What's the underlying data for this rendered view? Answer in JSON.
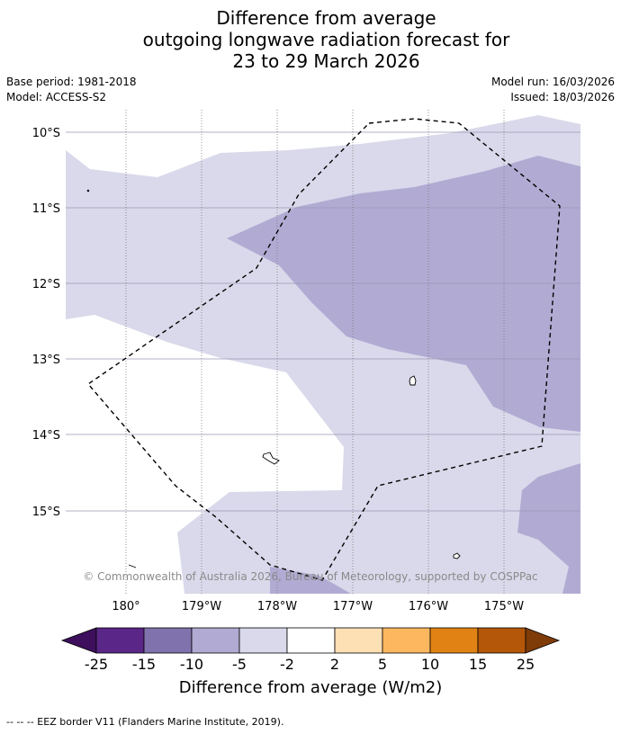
{
  "title": {
    "line1": "Difference from average",
    "line2": "outgoing longwave radiation forecast for",
    "line3": "23 to 29 March 2026"
  },
  "meta": {
    "base_period": "Base period: 1981-2018",
    "model": "Model: ACCESS-S2",
    "model_run": "Model run: 16/03/2026",
    "issued": "Issued: 18/03/2026"
  },
  "map": {
    "lat_labels": [
      "10°S",
      "11°S",
      "12°S",
      "13°S",
      "14°S",
      "15°S"
    ],
    "lon_labels": [
      "180°",
      "179°W",
      "178°W",
      "177°W",
      "176°W",
      "175°W"
    ],
    "copyright": "© Commonwealth of Australia 2026, Bureau of Meteorology, supported by COSPPac"
  },
  "colorbar": {
    "ticks": [
      "-25",
      "-15",
      "-10",
      "-5",
      "-2",
      "2",
      "5",
      "10",
      "15",
      "25"
    ],
    "colors": [
      "#3d0f5c",
      "#5a2687",
      "#8073ad",
      "#b1abd3",
      "#d9d9eb",
      "#ffffff",
      "#fee0b5",
      "#fdb75f",
      "#e08314",
      "#b45709",
      "#7f3b08"
    ],
    "label": "Difference from average (W/m2)"
  },
  "footer": {
    "legend": "--  --  -- EEZ border V11 (Flanders Marine Institute, 2019)."
  }
}
